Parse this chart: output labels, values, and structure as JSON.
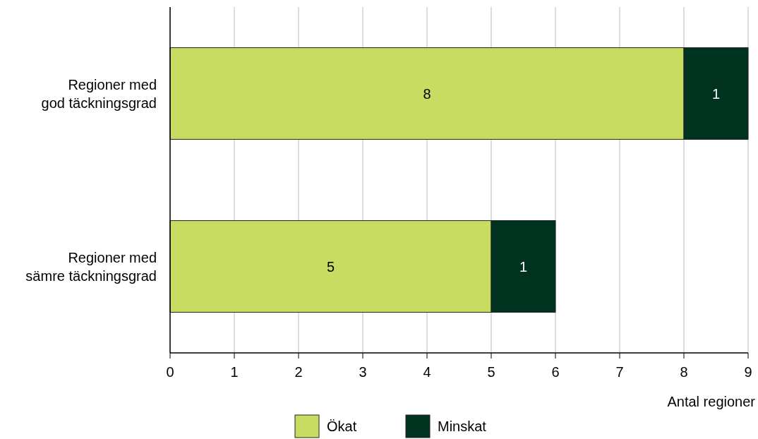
{
  "chart_data": {
    "type": "bar",
    "orientation": "horizontal",
    "stacked": true,
    "categories": [
      "Regioner med\ngod täckningsgrad",
      "Regioner med\nsämre täckningsgrad"
    ],
    "series": [
      {
        "name": "Ökat",
        "color": "#c9dc62",
        "values": [
          8,
          5
        ]
      },
      {
        "name": "Minskat",
        "color": "#00331f",
        "values": [
          1,
          1
        ]
      }
    ],
    "xlim": [
      0,
      9
    ],
    "xticks": [
      0,
      1,
      2,
      3,
      4,
      5,
      6,
      7,
      8,
      9
    ],
    "xlabel": "Antal regioner",
    "grid": "x",
    "legend": "bottom",
    "data_labels": true
  }
}
